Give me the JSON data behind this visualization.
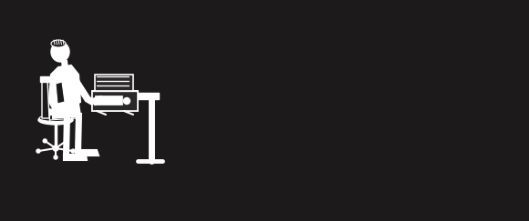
{
  "background_color": "#1c1a1a",
  "figure_width": 5.8,
  "figure_height": 2.43,
  "dpi": 100,
  "line_color": "#ffffff",
  "lw": 1.5
}
